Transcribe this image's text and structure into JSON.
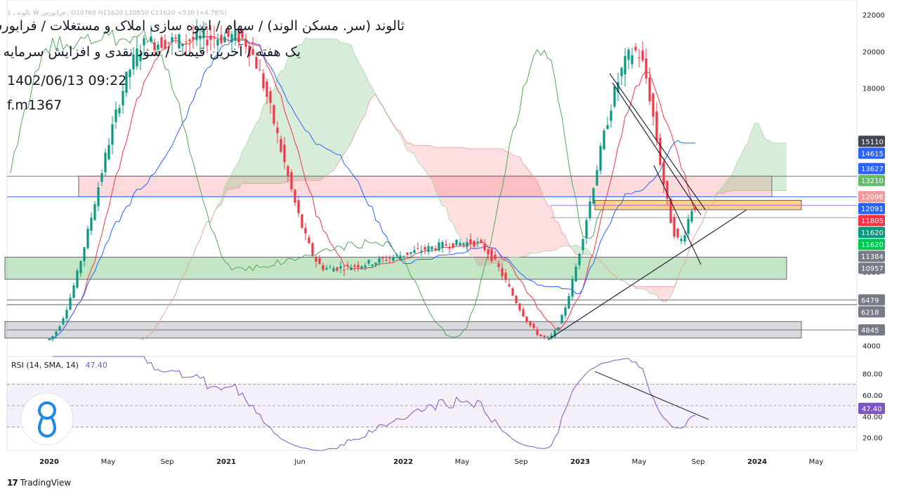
{
  "header": {
    "ohlc_strip": "1 ثالوند ـ W ـ فرابورس   O10760  H11620  L10650  C11620  +530 (+4.78%)",
    "title_line1": "ثالوند (سر. مسکن الوند) / سهام / انبوه سازی املاک و مستغلات / فرابورس",
    "title_line2": "یک هفته / آخرین قیمت / سود نقدی و افزایش سرمایه",
    "datetime": "1402/06/13 09:22",
    "author": "f.m1367"
  },
  "rsi_panel": {
    "label": "RSI (14, SMA, 14)",
    "value": "47.40"
  },
  "brand": {
    "logo": "17",
    "name": "TradingView"
  },
  "chart_data": {
    "type": "candlestick",
    "price_axis": {
      "ticks": [
        4000,
        6000,
        8000,
        10000,
        12000,
        14000,
        16000,
        18000,
        20000,
        22000
      ],
      "tick_labels": [
        "4000",
        "",
        "8000",
        "10000",
        "",
        "",
        "",
        "18000",
        "20000",
        "22000"
      ],
      "ylim": [
        3400,
        22800
      ]
    },
    "time_axis": {
      "labels": [
        "2020",
        "May",
        "Sep",
        "2021",
        "Jun",
        "2022",
        "May",
        "Sep",
        "2023",
        "May",
        "Sep",
        "2024",
        "May"
      ],
      "bold": [
        "2020",
        "2021",
        "2022",
        "2023",
        "2024"
      ]
    },
    "price_labels": [
      {
        "value": 15110,
        "text": "15110",
        "color": "#434651"
      },
      {
        "value": 14615,
        "text": "14615",
        "color": "#2962ff"
      },
      {
        "value": 13627,
        "text": "13627",
        "color": "#2962ff"
      },
      {
        "value": 13210,
        "text": "13210",
        "color": "#66bb6a"
      },
      {
        "value": 12098,
        "text": "12098",
        "color": "#ef9a9a"
      },
      {
        "value": 12091,
        "text": "12091",
        "color": "#2962ff"
      },
      {
        "value": 11805,
        "text": "11805",
        "color": "#f23645"
      },
      {
        "value": 11620,
        "text": "11620",
        "color": "#089981"
      },
      {
        "value": 11620,
        "text": "11620",
        "color": "#00c853"
      },
      {
        "value": 11384,
        "text": "11384",
        "color": "#787b86"
      },
      {
        "value": 10957,
        "text": "10957",
        "color": "#787b86"
      },
      {
        "value": 6479,
        "text": "6479",
        "color": "#787b86"
      },
      {
        "value": 6218,
        "text": "6218",
        "color": "#787b86"
      },
      {
        "value": 4845,
        "text": "4845",
        "color": "#787b86"
      }
    ],
    "zones": [
      {
        "name": "resistance-zone",
        "low": 12098,
        "high": 13210,
        "from": "2020-03",
        "to": "2024-02",
        "color": "#f8bbd0"
      },
      {
        "name": "demand-zone",
        "low": 11384,
        "high": 11900,
        "from": "2023-02",
        "to": "2024-04",
        "color": "#ffcc80"
      },
      {
        "name": "middle-support-zone",
        "low": 7600,
        "high": 8800,
        "from": "2019-10",
        "to": "2024-03",
        "color": "#a5d6a7"
      },
      {
        "name": "lower-support-zone",
        "low": 4400,
        "high": 5300,
        "from": "2019-10",
        "to": "2024-04",
        "color": "#d1d4dc"
      }
    ],
    "horizontal_lines": [
      {
        "value": 13210,
        "color": "#434651"
      },
      {
        "value": 12091,
        "color": "#2962ff"
      },
      {
        "value": 11620,
        "color": "#7e57c2"
      },
      {
        "value": 10957,
        "color": "#787b86"
      },
      {
        "value": 6479,
        "color": "#434651"
      },
      {
        "value": 6218,
        "color": "#434651"
      },
      {
        "value": 4845,
        "color": "#434651"
      }
    ],
    "ohlc_summary": {
      "open": 10760,
      "high": 11620,
      "low": 10650,
      "close": 11620,
      "change": 530,
      "change_pct": 4.78
    },
    "key_points": [
      {
        "date": "2020-01",
        "price": 4300
      },
      {
        "date": "2020-08",
        "price": 20500
      },
      {
        "date": "2021-02",
        "price": 20800
      },
      {
        "date": "2021-08",
        "price": 8200
      },
      {
        "date": "2022-06",
        "price": 9600
      },
      {
        "date": "2022-11",
        "price": 4400
      },
      {
        "date": "2023-05",
        "price": 20000
      },
      {
        "date": "2023-08",
        "price": 9700
      },
      {
        "date": "2023-09",
        "price": 11620
      }
    ],
    "rsi": {
      "period": 14,
      "ticks": [
        "80.00",
        "60.00",
        "40.00",
        "20.00"
      ],
      "levels": [
        70,
        50,
        30
      ],
      "last_value": 47.4,
      "ylim": [
        8,
        96
      ]
    }
  }
}
